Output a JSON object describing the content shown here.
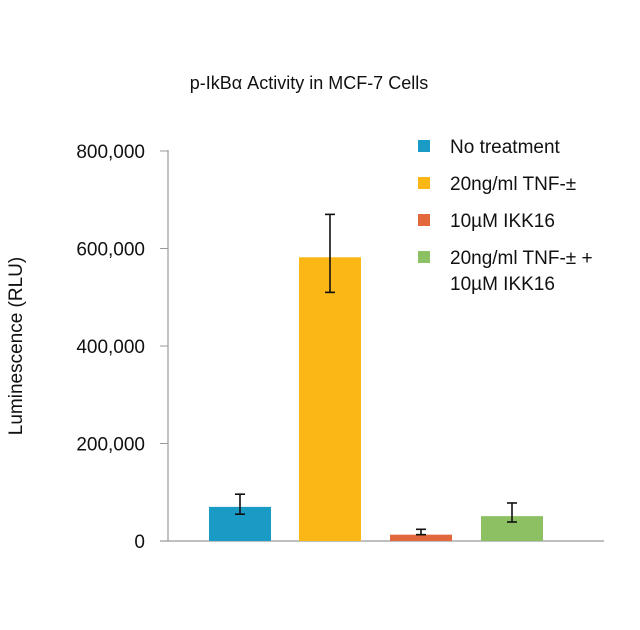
{
  "chart_data": {
    "type": "bar",
    "title": "p-IkBα Activity in MCF-7 Cells",
    "xlabel": "",
    "ylabel": "Luminescence (RLU)",
    "ylim": [
      0,
      800000
    ],
    "yticks": [
      0,
      200000,
      400000,
      600000,
      800000
    ],
    "ytick_labels": [
      "0",
      "200,000",
      "400,000",
      "600,000",
      "800,000"
    ],
    "grid": false,
    "legend_position": "top-right",
    "series": [
      {
        "name": "No treatment",
        "value": 70000,
        "error_low": 55000,
        "error_high": 96000,
        "color": "#1a9bc6"
      },
      {
        "name": "20ng/ml TNF-±",
        "value": 582000,
        "error_low": 510000,
        "error_high": 670000,
        "color": "#fbb716"
      },
      {
        "name": "10µM IKK16",
        "value": 13000,
        "error_low": 13000,
        "error_high": 24000,
        "color": "#e3673c"
      },
      {
        "name": "20ng/ml TNF-± +\n10µM IKK16",
        "value": 51000,
        "error_low": 39000,
        "error_high": 78000,
        "color": "#8cc063"
      }
    ],
    "legend_lines": [
      [
        "No treatment"
      ],
      [
        "20ng/ml TNF-±"
      ],
      [
        "10µM IKK16"
      ],
      [
        "20ng/ml TNF-± +",
        "10µM IKK16"
      ]
    ]
  }
}
